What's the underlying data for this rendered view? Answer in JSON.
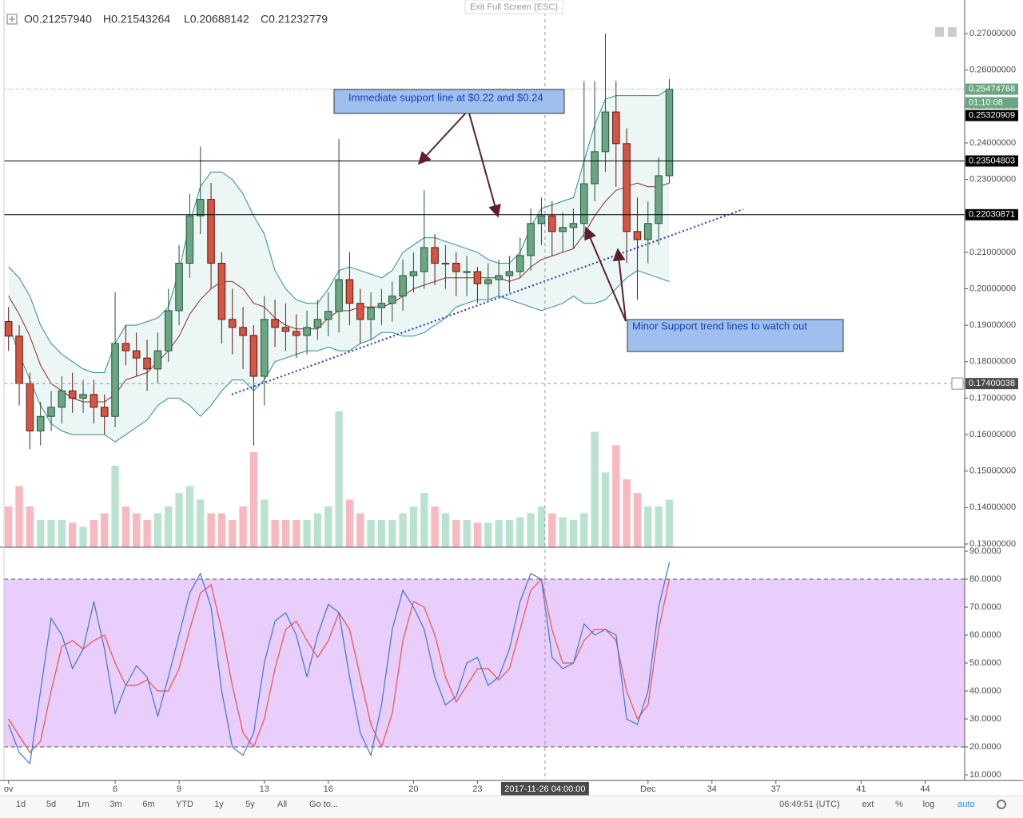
{
  "ui": {
    "exit_fullscreen": "Exit Full Screen (ESC)",
    "ohlc": [
      "O0.21257940",
      "H0.21543264",
      "L0.20688142",
      "C0.21232779"
    ],
    "toolbar": [
      "1d",
      "5d",
      "1m",
      "3m",
      "6m",
      "YTD",
      "1y",
      "5y",
      "All",
      "Go to..."
    ],
    "clock": "06:49:51 (UTC)",
    "options": [
      "ext",
      "%",
      "log",
      "auto"
    ]
  },
  "chart_data": [
    {
      "type": "candlestick",
      "x": [
        1,
        1.5,
        2,
        2.5,
        3,
        3.5,
        4,
        4.5,
        5,
        5.5,
        6,
        6.5,
        7,
        7.5,
        8,
        8.5,
        9,
        9.5,
        10,
        10.5,
        11,
        11.5,
        12,
        12.5,
        13,
        13.5,
        14,
        14.5,
        15,
        15.5,
        16,
        16.5,
        17,
        17.5,
        18,
        18.5,
        19,
        19.5,
        20,
        20.5,
        21,
        21.5,
        22,
        22.5,
        23,
        23.5,
        24,
        24.5,
        25,
        25.5,
        26,
        26.5,
        27,
        27.5,
        28,
        28.5,
        29,
        29.5,
        30,
        30.5,
        31,
        31.5,
        32
      ],
      "open": [
        0.191,
        0.187,
        0.174,
        0.161,
        0.165,
        0.1675,
        0.172,
        0.17,
        0.171,
        0.1675,
        0.165,
        0.185,
        0.183,
        0.181,
        0.178,
        0.183,
        0.194,
        0.207,
        0.22,
        0.2245,
        0.207,
        0.1916,
        0.1894,
        0.1872,
        0.176,
        0.1916,
        0.1894,
        0.1883,
        0.1872,
        0.1894,
        0.1916,
        0.1938,
        0.2025,
        0.196,
        0.1916,
        0.1948,
        0.196,
        0.198,
        0.2036,
        0.2047,
        0.2113,
        0.207,
        0.207,
        0.2047,
        0.2047,
        0.2014,
        0.2025,
        0.2036,
        0.2047,
        0.2091,
        0.2179,
        0.22,
        0.2157,
        0.2168,
        0.2179,
        0.2288,
        0.2376,
        0.2485,
        0.2398,
        0.2157,
        0.2135,
        0.2179,
        0.231
      ],
      "high": [
        0.195,
        0.19,
        0.177,
        0.169,
        0.172,
        0.176,
        0.177,
        0.175,
        0.175,
        0.171,
        0.199,
        0.19,
        0.188,
        0.186,
        0.188,
        0.2,
        0.212,
        0.226,
        0.239,
        0.229,
        0.21,
        0.2,
        0.195,
        0.19,
        0.198,
        0.197,
        0.196,
        0.193,
        0.194,
        0.197,
        0.199,
        0.241,
        0.21,
        0.2,
        0.199,
        0.2,
        0.202,
        0.208,
        0.21,
        0.227,
        0.215,
        0.212,
        0.21,
        0.209,
        0.206,
        0.207,
        0.208,
        0.209,
        0.214,
        0.222,
        0.225,
        0.224,
        0.221,
        0.222,
        0.257,
        0.257,
        0.27,
        0.257,
        0.244,
        0.225,
        0.224,
        0.236,
        0.2575
      ],
      "low": [
        0.183,
        0.168,
        0.156,
        0.157,
        0.161,
        0.163,
        0.166,
        0.166,
        0.163,
        0.16,
        0.162,
        0.179,
        0.176,
        0.172,
        0.174,
        0.18,
        0.19,
        0.203,
        0.215,
        0.2,
        0.185,
        0.182,
        0.178,
        0.157,
        0.168,
        0.184,
        0.183,
        0.181,
        0.182,
        0.186,
        0.187,
        0.188,
        0.19,
        0.185,
        0.186,
        0.19,
        0.191,
        0.194,
        0.199,
        0.2,
        0.201,
        0.2,
        0.198,
        0.198,
        0.196,
        0.197,
        0.198,
        0.199,
        0.203,
        0.205,
        0.212,
        0.209,
        0.21,
        0.211,
        0.214,
        0.224,
        0.232,
        0.228,
        0.207,
        0.197,
        0.207,
        0.212,
        0.229
      ],
      "close": [
        0.187,
        0.174,
        0.161,
        0.165,
        0.1675,
        0.172,
        0.17,
        0.171,
        0.1675,
        0.165,
        0.185,
        0.183,
        0.181,
        0.178,
        0.183,
        0.194,
        0.207,
        0.22,
        0.2245,
        0.207,
        0.1916,
        0.1894,
        0.1872,
        0.176,
        0.1916,
        0.1894,
        0.1883,
        0.1872,
        0.1894,
        0.1916,
        0.1938,
        0.2025,
        0.196,
        0.1916,
        0.1948,
        0.196,
        0.198,
        0.2036,
        0.2047,
        0.2113,
        0.207,
        0.207,
        0.2047,
        0.2047,
        0.2014,
        0.2025,
        0.2036,
        0.2047,
        0.2091,
        0.2179,
        0.22,
        0.2157,
        0.2168,
        0.2179,
        0.2288,
        0.2376,
        0.2485,
        0.2398,
        0.2157,
        0.2135,
        0.2179,
        0.231,
        0.2547
      ],
      "volume": [
        30,
        45,
        30,
        20,
        20,
        20,
        18,
        15,
        20,
        25,
        60,
        30,
        25,
        20,
        25,
        30,
        40,
        45,
        35,
        25,
        25,
        20,
        30,
        70,
        35,
        20,
        20,
        20,
        20,
        25,
        30,
        100,
        35,
        25,
        20,
        20,
        20,
        25,
        30,
        40,
        30,
        25,
        20,
        20,
        18,
        18,
        20,
        20,
        22,
        25,
        30,
        25,
        22,
        20,
        25,
        85,
        55,
        75,
        50,
        40,
        30,
        30,
        35
      ],
      "bollinger": {
        "upper": [
          0.206,
          0.203,
          0.198,
          0.19,
          0.185,
          0.182,
          0.18,
          0.178,
          0.177,
          0.177,
          0.185,
          0.19,
          0.19,
          0.191,
          0.192,
          0.195,
          0.205,
          0.218,
          0.228,
          0.232,
          0.232,
          0.23,
          0.226,
          0.22,
          0.215,
          0.205,
          0.2,
          0.197,
          0.196,
          0.196,
          0.2,
          0.205,
          0.206,
          0.205,
          0.204,
          0.203,
          0.205,
          0.21,
          0.212,
          0.214,
          0.214,
          0.213,
          0.212,
          0.211,
          0.21,
          0.208,
          0.207,
          0.207,
          0.21,
          0.217,
          0.222,
          0.223,
          0.224,
          0.225,
          0.235,
          0.245,
          0.252,
          0.253,
          0.253,
          0.253,
          0.253,
          0.253,
          0.255
        ],
        "middle": [
          0.198,
          0.193,
          0.187,
          0.179,
          0.174,
          0.172,
          0.17,
          0.169,
          0.169,
          0.169,
          0.171,
          0.175,
          0.176,
          0.177,
          0.18,
          0.183,
          0.187,
          0.193,
          0.197,
          0.2,
          0.202,
          0.202,
          0.2,
          0.196,
          0.195,
          0.192,
          0.19,
          0.189,
          0.189,
          0.189,
          0.192,
          0.194,
          0.194,
          0.195,
          0.195,
          0.195,
          0.196,
          0.198,
          0.2,
          0.201,
          0.202,
          0.203,
          0.203,
          0.203,
          0.203,
          0.203,
          0.203,
          0.202,
          0.203,
          0.206,
          0.208,
          0.209,
          0.21,
          0.211,
          0.215,
          0.22,
          0.224,
          0.227,
          0.228,
          0.229,
          0.228,
          0.228,
          0.229
        ],
        "lower": [
          0.19,
          0.182,
          0.175,
          0.168,
          0.163,
          0.161,
          0.16,
          0.16,
          0.16,
          0.16,
          0.158,
          0.16,
          0.162,
          0.164,
          0.168,
          0.17,
          0.17,
          0.168,
          0.165,
          0.168,
          0.172,
          0.175,
          0.175,
          0.172,
          0.175,
          0.18,
          0.181,
          0.182,
          0.183,
          0.183,
          0.184,
          0.183,
          0.183,
          0.185,
          0.186,
          0.188,
          0.188,
          0.187,
          0.187,
          0.188,
          0.19,
          0.192,
          0.195,
          0.196,
          0.197,
          0.197,
          0.198,
          0.197,
          0.196,
          0.195,
          0.194,
          0.195,
          0.196,
          0.198,
          0.196,
          0.196,
          0.197,
          0.2,
          0.203,
          0.205,
          0.204,
          0.203,
          0.202
        ],
        "band_color": "#2a8c99",
        "middle_color": "#8e2a2a",
        "fill": "#e6f4f3"
      },
      "up_color": "#6ba583",
      "down_color": "#d75442",
      "up_volume_color": "#a9dcc3",
      "down_volume_color": "#f5a6ae",
      "hlines": [
        {
          "value": 0.23504803,
          "label": "0.23504803"
        },
        {
          "value": 0.22030871,
          "label": "0.22030871"
        }
      ],
      "last_price": {
        "value": 0.25474768,
        "label": "0.25474768"
      },
      "countdown": "01:10:08",
      "prev_price": {
        "value": 0.25320909,
        "label": "0.25320909"
      },
      "crosshair": {
        "y": {
          "value": 0.17400038,
          "label": "0.17400038"
        },
        "x": {
          "value": 26.1667,
          "label": "2017-11-26 04:00:00"
        }
      },
      "trendline": {
        "x": [
          11.47,
          35.47
        ],
        "y": [
          0.171,
          0.2218
        ],
        "color": "#2233cc"
      },
      "annotations": [
        "Immediate support line at $0.22 and $0.24",
        "Minor Support trend lines to watch out"
      ],
      "ylim": [
        0.12912,
        0.2792
      ],
      "yticks": [
        {
          "value": 0.27,
          "label": "0.27000000"
        },
        {
          "value": 0.26,
          "label": "0.26000000"
        },
        {
          "value": 0.25,
          "label": "0.25000000"
        },
        {
          "value": 0.24,
          "label": "0.24000000"
        },
        {
          "value": 0.23,
          "label": "0.23000000"
        },
        {
          "value": 0.22,
          "label": "0.22000000"
        },
        {
          "value": 0.21,
          "label": "0.21000000"
        },
        {
          "value": 0.2,
          "label": "0.20000000"
        },
        {
          "value": 0.19,
          "label": "0.19000000"
        },
        {
          "value": 0.18,
          "label": "0.18000000"
        },
        {
          "value": 0.17,
          "label": "0.17000000"
        },
        {
          "value": 0.16,
          "label": "0.16000000"
        },
        {
          "value": 0.15,
          "label": "0.15000000"
        },
        {
          "value": 0.14,
          "label": "0.14000000"
        },
        {
          "value": 0.13,
          "label": "0.13000000"
        }
      ],
      "xlim": [
        0.786,
        45.856
      ],
      "xticks": [
        {
          "value": 1,
          "label": "ov"
        },
        6,
        9,
        13,
        16,
        20,
        23,
        {
          "value": 31,
          "label": "Dec"
        },
        34,
        37,
        41,
        44
      ]
    },
    {
      "type": "line",
      "series": [
        {
          "color": "#3c78d8",
          "values": [
            28,
            18,
            14,
            40,
            66,
            60,
            48,
            55,
            72,
            55,
            32,
            42,
            49,
            45,
            31,
            45,
            60,
            75,
            82,
            70,
            40,
            20,
            17,
            25,
            50,
            65,
            68,
            60,
            45,
            60,
            71,
            68,
            45,
            25,
            17,
            35,
            62,
            76,
            70,
            62,
            45,
            35,
            38,
            50,
            52,
            42,
            45,
            55,
            72,
            82,
            80,
            52,
            48,
            50,
            64,
            60,
            62,
            60,
            30,
            28,
            40,
            70,
            86
          ]
        },
        {
          "color": "#e8534d",
          "values": [
            30,
            24,
            18,
            22,
            40,
            56,
            58,
            55,
            58,
            60,
            50,
            42,
            42,
            44,
            40,
            40,
            48,
            62,
            75,
            78,
            62,
            42,
            25,
            20,
            30,
            48,
            62,
            65,
            58,
            52,
            58,
            68,
            62,
            45,
            28,
            20,
            32,
            58,
            72,
            70,
            60,
            45,
            36,
            42,
            48,
            48,
            44,
            48,
            62,
            76,
            80,
            62,
            50,
            50,
            58,
            62,
            62,
            58,
            40,
            30,
            35,
            62,
            80
          ]
        }
      ],
      "overbought": 80,
      "oversold": 20,
      "band_fill": "#e9cdfa",
      "ylim": [
        8,
        91.43
      ],
      "yticks": [
        {
          "value": 90,
          "label": "90.0000"
        },
        {
          "value": 80,
          "label": "80.0000"
        },
        {
          "value": 70,
          "label": "70.0000"
        },
        {
          "value": 60,
          "label": "60.0000"
        },
        {
          "value": 50,
          "label": "50.0000"
        },
        {
          "value": 40,
          "label": "40.0000"
        },
        {
          "value": 30,
          "label": "30.0000"
        },
        {
          "value": 20,
          "label": "20.0000"
        },
        {
          "value": 10,
          "label": "10.0000"
        }
      ]
    }
  ]
}
